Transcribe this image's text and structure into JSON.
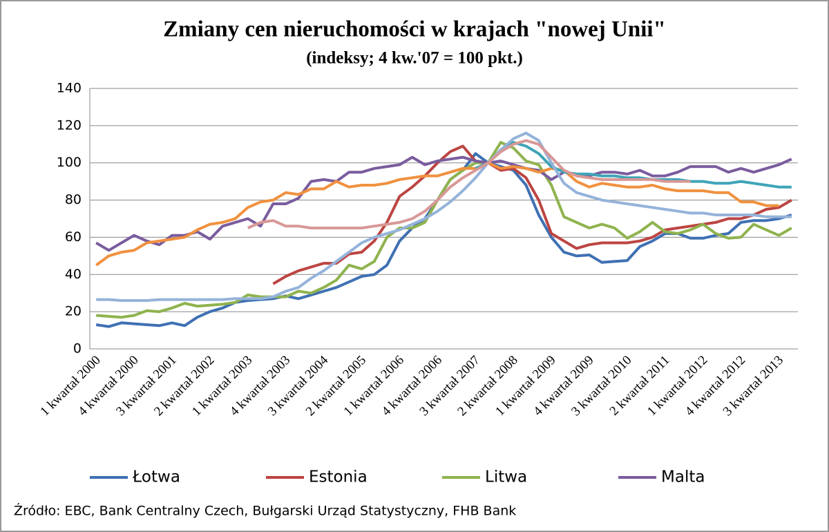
{
  "chart_data": {
    "type": "line",
    "title": "Zmiany cen nieruchomości w krajach \"nowej Unii\"",
    "subtitle": "(indeksy; 4 kw.'07 = 100 pkt.)",
    "categories": [
      "1 kwartał 2000",
      null,
      null,
      "4 kwartał 2000",
      null,
      null,
      "3 kwartał 2001",
      null,
      null,
      "2 kwartał 2002",
      null,
      null,
      "1 kwartał 2003",
      null,
      null,
      "4 kwartał 2003",
      null,
      null,
      "3 kwartał 2004",
      null,
      null,
      "2 kwartał 2005",
      null,
      null,
      "1 kwartał 2006",
      null,
      null,
      "4 kwartał 2006",
      null,
      null,
      "3 kwartał 2007",
      null,
      null,
      "2 kwartał 2008",
      null,
      null,
      "1 kwartał 2009",
      null,
      null,
      "4 kwartał 2009",
      null,
      null,
      "3 kwartał 2010",
      null,
      null,
      "2 kwartał 2011",
      null,
      null,
      "1 kwartał 2012",
      null,
      null,
      "4 kwartał 2012",
      null,
      null,
      "3 kwartał 2013",
      null
    ],
    "ylim": [
      0,
      140
    ],
    "yticks": [
      0,
      20,
      40,
      60,
      80,
      100,
      120,
      140
    ],
    "grid": true,
    "series": [
      {
        "name": "Łotwa",
        "color": "#3f70b3",
        "values": [
          13,
          12,
          14,
          13.5,
          13,
          12.5,
          14,
          12.5,
          17,
          20,
          22,
          25,
          26,
          26.5,
          27,
          28.5,
          27,
          29,
          31,
          33,
          36,
          39,
          40,
          45,
          58,
          65,
          70,
          80,
          91,
          96,
          105,
          100,
          98,
          96,
          88,
          72,
          60,
          52,
          50,
          50.5,
          46.5,
          47,
          47.5,
          55,
          58,
          62,
          62,
          59.5,
          59.5,
          61,
          62,
          68,
          69,
          69,
          70,
          72
        ]
      },
      {
        "name": "Estonia",
        "color": "#bc4542",
        "values": [
          null,
          null,
          null,
          null,
          null,
          null,
          null,
          null,
          null,
          null,
          null,
          null,
          null,
          null,
          35,
          39,
          42,
          44,
          46,
          46,
          51,
          52,
          58,
          68,
          82,
          87,
          93,
          100,
          106,
          109,
          101,
          100,
          96,
          97,
          92,
          80,
          62,
          58,
          54,
          56,
          57,
          57,
          57,
          58,
          60,
          64,
          65,
          66,
          67,
          68,
          70,
          70,
          72,
          75,
          76,
          80
        ]
      },
      {
        "name": "Litwa",
        "color": "#8fb34e",
        "values": [
          18,
          17.5,
          17,
          18,
          20.5,
          20,
          22,
          24.5,
          23,
          23.5,
          24,
          25,
          29,
          28,
          28,
          28,
          31,
          30,
          33,
          37,
          45,
          43,
          47,
          60,
          65,
          65,
          68,
          80,
          91,
          96,
          100,
          100,
          111,
          108,
          101,
          99,
          88,
          71,
          68,
          65,
          67,
          65,
          59.5,
          63,
          68,
          63,
          62,
          64,
          67,
          62,
          59.5,
          60,
          67,
          64,
          61,
          65
        ]
      },
      {
        "name": "Malta",
        "color": "#7a5c9e",
        "values": [
          57,
          53,
          57,
          61,
          58,
          56,
          61,
          61,
          63,
          59,
          66,
          68,
          70,
          66,
          78,
          78,
          81,
          90,
          91,
          90,
          95,
          95,
          97,
          98,
          99,
          103,
          99,
          101,
          102,
          103,
          101,
          100,
          101,
          99,
          97,
          96,
          91,
          95,
          94,
          93,
          95,
          95,
          94,
          96,
          93,
          93,
          95,
          98,
          98,
          98,
          95,
          97,
          95,
          97,
          99,
          102
        ]
      },
      {
        "color": "#f0913f",
        "values": [
          45,
          50,
          52,
          53,
          57,
          58,
          59,
          60,
          64,
          67,
          68,
          70,
          76,
          79,
          80,
          84,
          83,
          86,
          86,
          90,
          87,
          88,
          88,
          89,
          91,
          92,
          93,
          93,
          95,
          97,
          97,
          100,
          97,
          98,
          97,
          95,
          97,
          96,
          90,
          87,
          89,
          88,
          87,
          87,
          88,
          86,
          85,
          85,
          85,
          84,
          84,
          79,
          79,
          77,
          77,
          null
        ]
      },
      {
        "color": "#3fa4b8",
        "values": [
          null,
          null,
          null,
          null,
          null,
          null,
          null,
          null,
          null,
          null,
          null,
          null,
          null,
          null,
          null,
          null,
          null,
          null,
          null,
          null,
          null,
          null,
          null,
          null,
          null,
          null,
          null,
          null,
          null,
          null,
          97,
          100,
          107,
          111,
          109,
          105,
          98,
          95,
          94,
          94,
          93,
          93,
          92,
          92,
          91,
          91,
          91,
          90,
          90,
          89,
          89,
          90,
          89,
          88,
          87,
          87
        ]
      },
      {
        "color": "#95b3d9",
        "values": [
          26.5,
          26.5,
          26,
          26,
          26,
          26.5,
          26.5,
          26.5,
          26.5,
          26.5,
          26.5,
          27,
          27,
          27,
          28,
          31,
          33,
          38,
          42,
          47,
          52,
          57,
          60,
          62,
          64,
          67,
          70,
          74,
          79,
          85,
          92,
          100,
          107,
          113,
          116,
          112,
          100,
          89,
          84,
          82,
          80,
          79,
          78,
          77,
          76,
          75,
          74,
          73,
          73,
          72,
          72,
          72,
          72,
          71,
          71,
          71
        ]
      },
      {
        "color": "#d89896",
        "values": [
          null,
          null,
          null,
          null,
          null,
          null,
          null,
          null,
          null,
          null,
          null,
          null,
          65,
          68,
          69,
          66,
          66,
          65,
          65,
          65,
          65,
          65,
          66,
          67,
          68,
          70,
          74,
          80,
          87,
          92,
          96,
          100,
          106,
          110,
          112,
          110,
          103,
          96,
          93,
          92,
          91,
          91,
          91,
          91,
          91,
          90,
          90,
          90,
          null,
          null,
          null,
          null,
          null,
          null,
          null,
          null
        ]
      }
    ]
  },
  "source": "Źródło: EBC, Bank Centralny Czech, Bułgarski Urząd Statystyczny, FHB Bank"
}
